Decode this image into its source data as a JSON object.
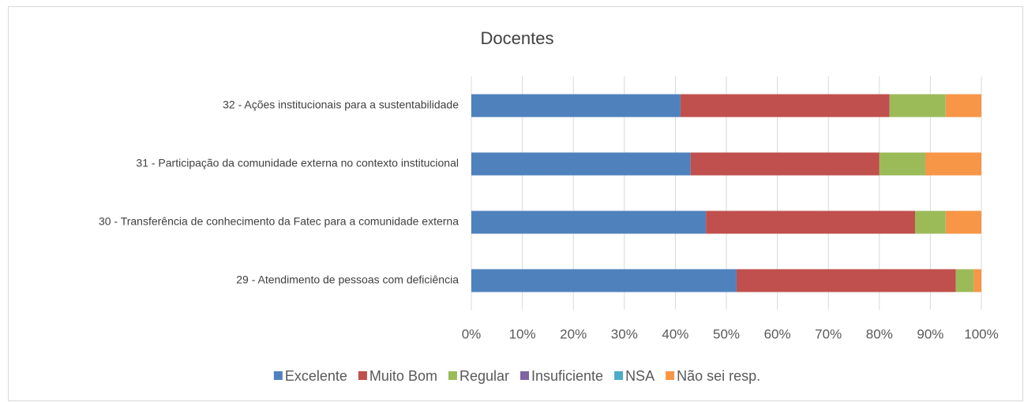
{
  "chart_data": {
    "type": "stacked_bar_horizontal",
    "title": "Docentes",
    "categories": [
      "32 - Ações institucionais para a sustentabilidade",
      "31 - Participação da comunidade externa no contexto institucional",
      "30 - Transferência de conhecimento da Fatec para a comunidade externa",
      "29 - Atendimento de pessoas com deficiência"
    ],
    "series": [
      {
        "name": "Excelente",
        "color": "#4f81bd",
        "values": [
          41,
          43,
          46,
          52
        ]
      },
      {
        "name": "Muito Bom",
        "color": "#c0504d",
        "values": [
          41,
          37,
          41,
          43
        ]
      },
      {
        "name": "Regular",
        "color": "#9bbb59",
        "values": [
          11,
          9,
          6,
          3.5
        ]
      },
      {
        "name": "Insuficiente",
        "color": "#8064a2",
        "values": [
          0,
          0,
          0,
          0
        ]
      },
      {
        "name": "NSA",
        "color": "#4bacc6",
        "values": [
          0,
          0,
          0,
          0
        ]
      },
      {
        "name": "Não sei resp.",
        "color": "#f79646",
        "values": [
          7,
          11,
          7,
          1.5
        ]
      }
    ],
    "xlim": [
      0,
      100
    ],
    "xticks": [
      {
        "value": 0,
        "label": "0%"
      },
      {
        "value": 10,
        "label": "10%"
      },
      {
        "value": 20,
        "label": "20%"
      },
      {
        "value": 30,
        "label": "30%"
      },
      {
        "value": 40,
        "label": "40%"
      },
      {
        "value": 50,
        "label": "50%"
      },
      {
        "value": 60,
        "label": "60%"
      },
      {
        "value": 70,
        "label": "70%"
      },
      {
        "value": 80,
        "label": "80%"
      },
      {
        "value": 90,
        "label": "90%"
      },
      {
        "value": 100,
        "label": "100%"
      }
    ],
    "grid": true,
    "legend": "bottom"
  }
}
